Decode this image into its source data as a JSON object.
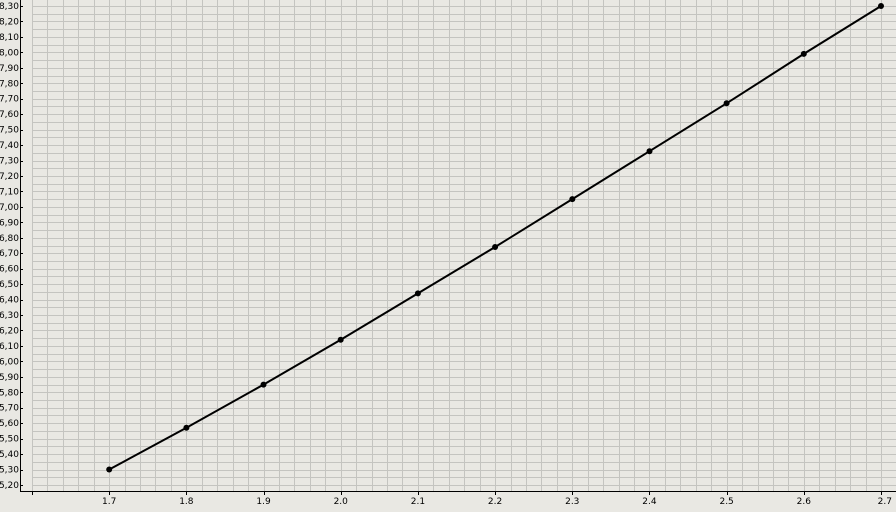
{
  "chart_data": {
    "type": "line",
    "title": "",
    "xlabel": "",
    "ylabel": "",
    "x": [
      1.7,
      1.8,
      1.9,
      2.0,
      2.1,
      2.2,
      2.3,
      2.4,
      2.5,
      2.6,
      2.7
    ],
    "x_tick_labels": [
      "1.7",
      "1.8",
      "1.9",
      "2.0",
      "2.1",
      "2.2",
      "2.3",
      "2.4",
      "2.5",
      "2.6",
      "2.7"
    ],
    "y_tick_labels": [
      "5,20",
      "5,30",
      "5,40",
      "5,50",
      "5,60",
      "5,70",
      "5,80",
      "5,90",
      "6,00",
      "6,10",
      "6,20",
      "6,30",
      "6,40",
      "6,50",
      "6,60",
      "6,70",
      "6,80",
      "6,90",
      "7,00",
      "7,10",
      "7,20",
      "7,30",
      "7,40",
      "7,50",
      "7,60",
      "7,70",
      "7,80",
      "7,90",
      "8,00",
      "8,10",
      "8,20",
      "8,30"
    ],
    "series": [
      {
        "values": [
          5.3,
          5.57,
          5.85,
          6.14,
          6.44,
          6.74,
          7.05,
          7.36,
          7.67,
          7.99,
          8.3
        ]
      }
    ],
    "xlim": [
      1.6,
      2.7
    ],
    "ylim": [
      5.2,
      8.3
    ],
    "grid": true,
    "line_color": "#000000",
    "background_color": "#e9e8e3",
    "grid_color": "#c4c4c0"
  }
}
